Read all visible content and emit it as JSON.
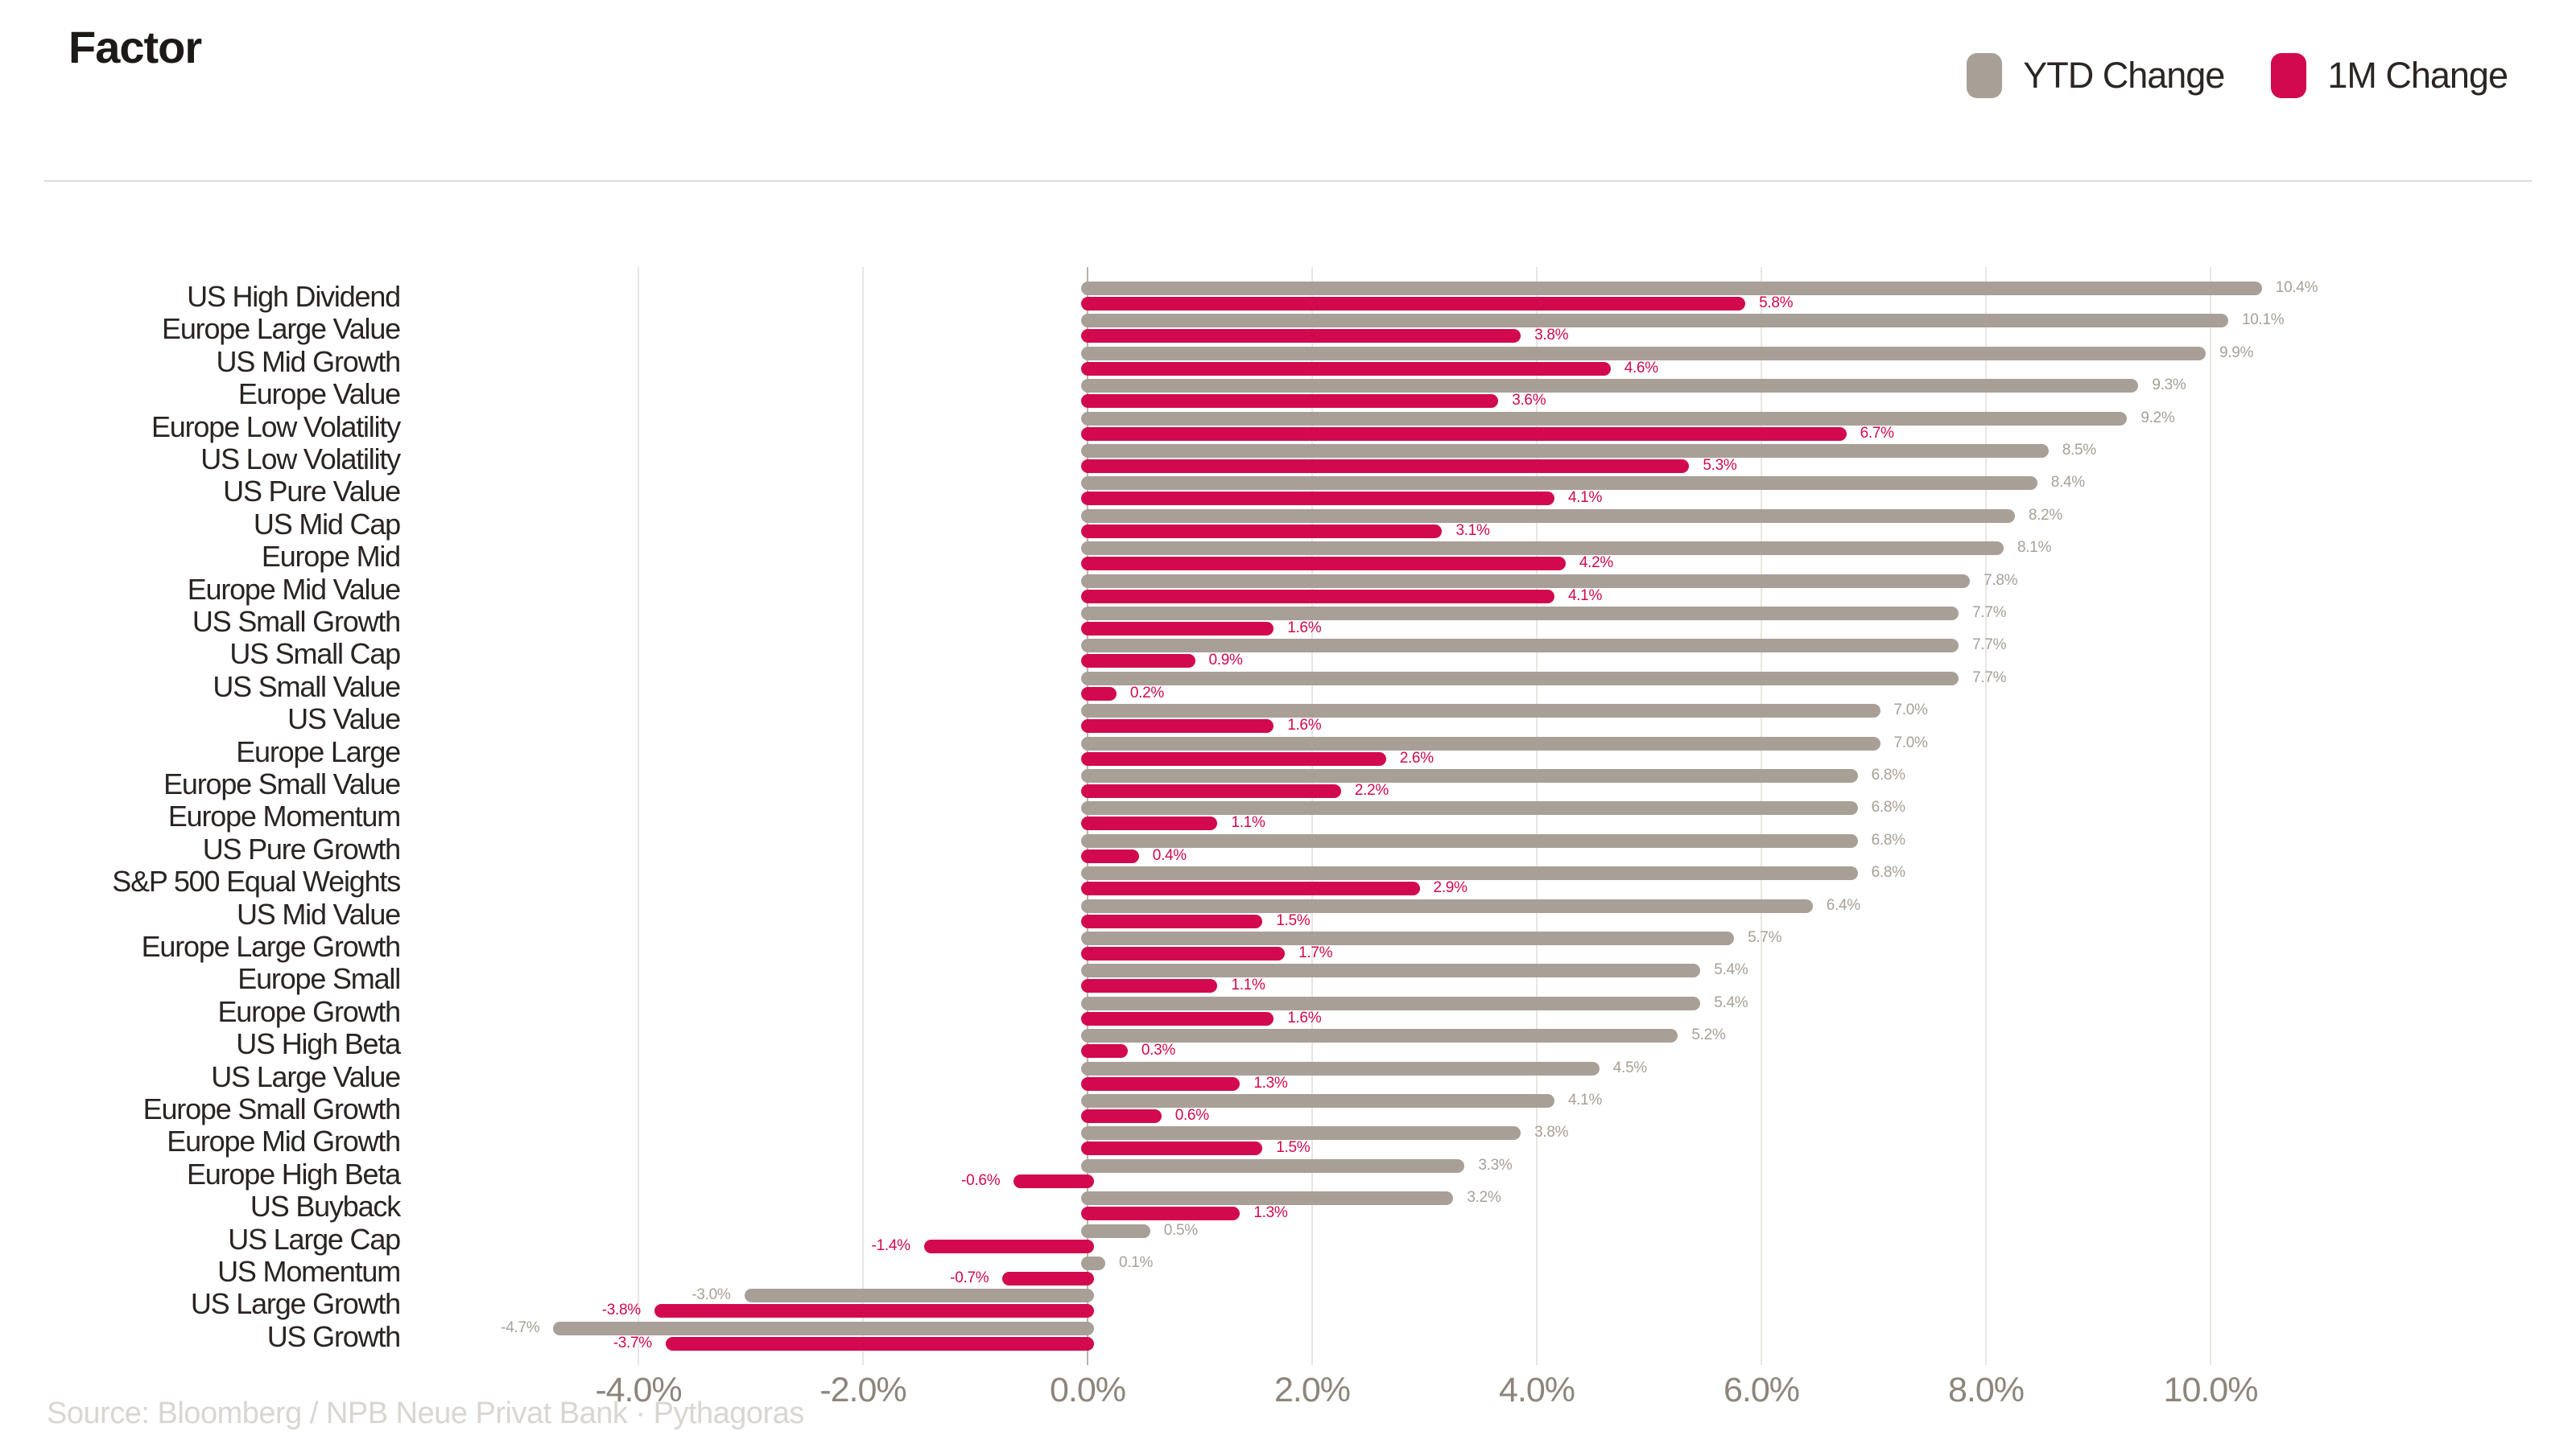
{
  "title": "Factor",
  "legend": [
    {
      "label": "YTD Change",
      "color": "#a89f96"
    },
    {
      "label": "1M Change",
      "color": "#d2094e"
    }
  ],
  "source": "Source: Bloomberg / NPB Neue Privat Bank · Pythagoras",
  "chart_data": {
    "type": "bar",
    "orientation": "horizontal",
    "title": "Factor",
    "xlabel": "",
    "ylabel": "",
    "grid": true,
    "legend_position": "top-right",
    "xlim": [
      -4.7,
      11.8
    ],
    "ticks": [
      -4,
      -2,
      0,
      2,
      4,
      6,
      8,
      10
    ],
    "tick_labels": [
      "-4.0%",
      "-2.0%",
      "0.0%",
      "2.0%",
      "4.0%",
      "6.0%",
      "8.0%",
      "10.0%"
    ],
    "value_suffix": "%",
    "categories": [
      "US High Dividend",
      "Europe Large Value",
      "US Mid Growth",
      "Europe Value",
      "Europe Low Volatility",
      "US Low Volatility",
      "US Pure Value",
      "US Mid Cap",
      "Europe Mid",
      "Europe Mid Value",
      "US Small Growth",
      "US Small Cap",
      "US Small Value",
      "US Value",
      "Europe Large",
      "Europe Small Value",
      "Europe Momentum",
      "US Pure Growth",
      "S&P 500 Equal Weights",
      "US Mid Value",
      "Europe Large Growth",
      "Europe Small",
      "Europe Growth",
      "US High Beta",
      "US Large Value",
      "Europe Small Growth",
      "Europe Mid Growth",
      "Europe High Beta",
      "US Buyback",
      "US Large Cap",
      "US Momentum",
      "US Large Growth",
      "US Growth"
    ],
    "series": [
      {
        "name": "YTD Change",
        "color": "#a89f96",
        "values": [
          10.4,
          10.1,
          9.9,
          9.3,
          9.2,
          8.5,
          8.4,
          8.2,
          8.1,
          7.8,
          7.7,
          7.7,
          7.7,
          7.0,
          7.0,
          6.8,
          6.8,
          6.8,
          6.8,
          6.4,
          5.7,
          5.4,
          5.4,
          5.2,
          4.5,
          4.1,
          3.8,
          3.3,
          3.2,
          0.5,
          0.1,
          -3.0,
          -4.7
        ],
        "labels": [
          "10.4%",
          "10.1%",
          "9.9%",
          "9.3%",
          "9.2%",
          "8.5%",
          "8.4%",
          "8.2%",
          "8.1%",
          "7.8%",
          "7.7%",
          "7.7%",
          "7.7%",
          "7.0%",
          "7.0%",
          "6.8%",
          "6.8%",
          "6.8%",
          "6.8%",
          "6.4%",
          "5.7%",
          "5.4%",
          "5.4%",
          "5.2%",
          "4.5%",
          "4.1%",
          "3.8%",
          "3.3%",
          "3.2%",
          "0.5%",
          "0.1%",
          "-3.0%",
          "-4.7%"
        ]
      },
      {
        "name": "1M Change",
        "color": "#d2094e",
        "values": [
          5.8,
          3.8,
          4.6,
          3.6,
          6.7,
          5.3,
          4.1,
          3.1,
          4.2,
          4.1,
          1.6,
          0.9,
          0.2,
          1.6,
          2.6,
          2.2,
          1.1,
          0.4,
          2.9,
          1.5,
          1.7,
          1.1,
          1.6,
          0.3,
          1.3,
          0.6,
          1.5,
          -0.6,
          1.3,
          -1.4,
          -0.7,
          -3.8,
          -3.7
        ],
        "labels": [
          "5.8%",
          "3.8%",
          "4.6%",
          "3.6%",
          "6.7%",
          "5.3%",
          "4.1%",
          "3.1%",
          "4.2%",
          "4.1%",
          "1.6%",
          "0.9%",
          "0.2%",
          "1.6%",
          "2.6%",
          "2.2%",
          "1.1%",
          "0.4%",
          "2.9%",
          "1.5%",
          "1.7%",
          "1.1%",
          "1.6%",
          "0.3%",
          "1.3%",
          "0.6%",
          "1.5%",
          "-0.6%",
          "1.3%",
          "-1.4%",
          "-0.7%",
          "-3.8%",
          "-3.7%"
        ]
      }
    ]
  }
}
